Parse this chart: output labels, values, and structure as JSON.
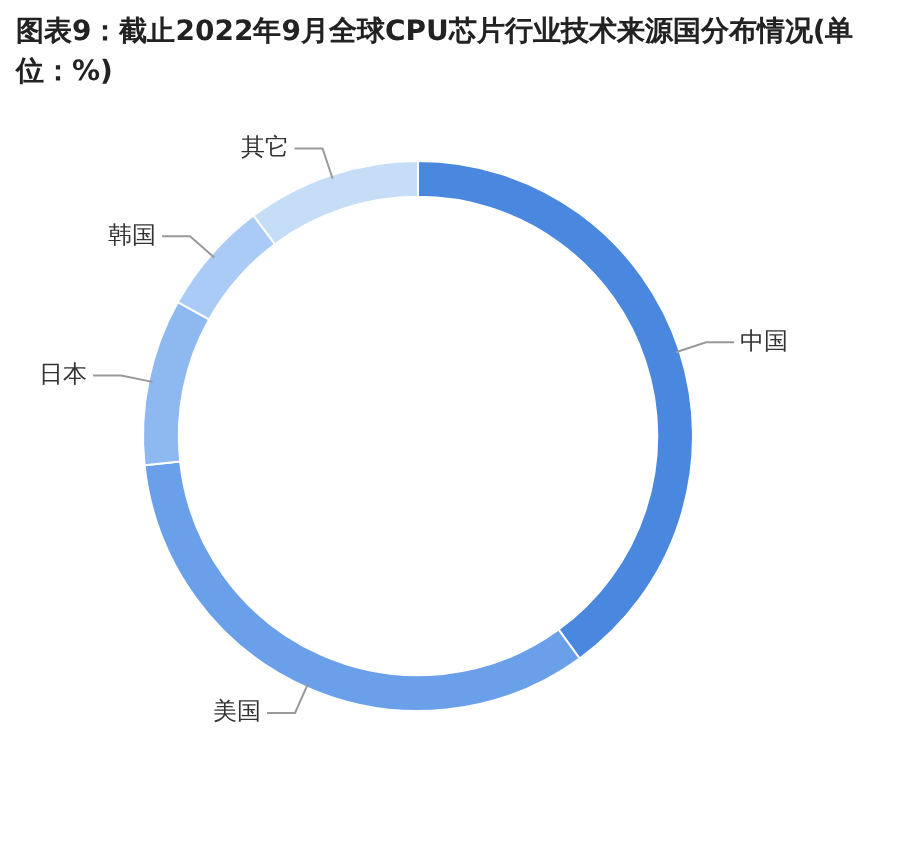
{
  "chart_data": {
    "type": "donut",
    "title": "图表9：截止2022年9月全球CPU芯片行业技术来源国分布情况(单位：%)",
    "categories": [
      "中国",
      "美国",
      "日本",
      "韩国",
      "其它"
    ],
    "values": [
      40,
      33.3,
      9.8,
      6.7,
      10.2
    ],
    "colors": [
      "#4a88e0",
      "#6aa0ea",
      "#8db8f0",
      "#a9cbf5",
      "#c6ddf8"
    ],
    "legend": false
  }
}
